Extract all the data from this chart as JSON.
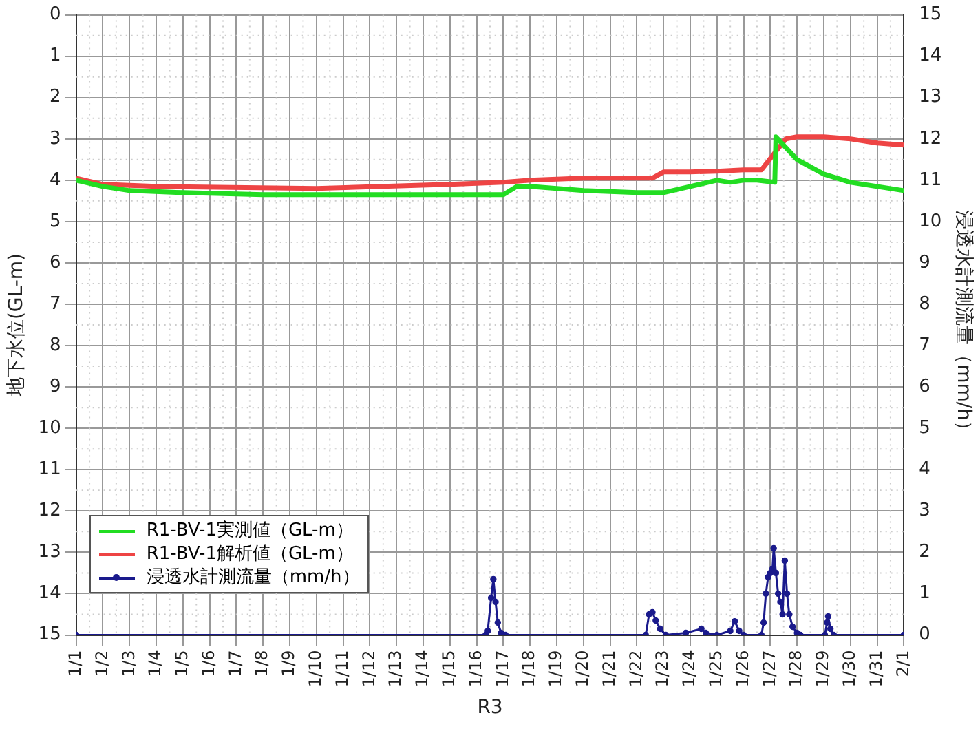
{
  "chart_data": {
    "type": "line",
    "xlabel": "R3",
    "ylabel": "地下水位(GL-m)",
    "y2label": "浸透水計測流量（mm/h）",
    "xlim": [
      "--01-01",
      "--02-01"
    ],
    "xticks": [
      {
        "value": "--01-01",
        "label": "1/1"
      },
      {
        "value": "--01-02",
        "label": "1/2"
      },
      {
        "value": "--01-03",
        "label": "1/3"
      },
      {
        "value": "--01-04",
        "label": "1/4"
      },
      {
        "value": "--01-05",
        "label": "1/5"
      },
      {
        "value": "--01-06",
        "label": "1/6"
      },
      {
        "value": "--01-07",
        "label": "1/7"
      },
      {
        "value": "--01-08",
        "label": "1/8"
      },
      {
        "value": "--01-09",
        "label": "1/9"
      },
      {
        "value": "--01-10",
        "label": "1/10"
      },
      {
        "value": "--01-11",
        "label": "1/11"
      },
      {
        "value": "--01-12",
        "label": "1/12"
      },
      {
        "value": "--01-13",
        "label": "1/13"
      },
      {
        "value": "--01-14",
        "label": "1/14"
      },
      {
        "value": "--01-15",
        "label": "1/15"
      },
      {
        "value": "--01-16",
        "label": "1/16"
      },
      {
        "value": "--01-17",
        "label": "1/17"
      },
      {
        "value": "--01-18",
        "label": "1/18"
      },
      {
        "value": "--01-19",
        "label": "1/19"
      },
      {
        "value": "--01-20",
        "label": "1/20"
      },
      {
        "value": "--01-21",
        "label": "1/21"
      },
      {
        "value": "--01-22",
        "label": "1/22"
      },
      {
        "value": "--01-23",
        "label": "1/23"
      },
      {
        "value": "--01-24",
        "label": "1/24"
      },
      {
        "value": "--01-25",
        "label": "1/25"
      },
      {
        "value": "--01-26",
        "label": "1/26"
      },
      {
        "value": "--01-27",
        "label": "1/27"
      },
      {
        "value": "--01-28",
        "label": "1/28"
      },
      {
        "value": "--01-29",
        "label": "1/29"
      },
      {
        "value": "--01-30",
        "label": "1/30"
      },
      {
        "value": "--01-31",
        "label": "1/31"
      },
      {
        "value": "--02-01",
        "label": "2/1"
      }
    ],
    "ylim": [
      15,
      0
    ],
    "yticks": [
      0,
      1,
      2,
      3,
      4,
      5,
      6,
      7,
      8,
      9,
      10,
      11,
      12,
      13,
      14,
      15
    ],
    "y2lim": [
      0,
      15
    ],
    "y2ticks": [
      0,
      1,
      2,
      3,
      4,
      5,
      6,
      7,
      8,
      9,
      10,
      11,
      12,
      13,
      14,
      15
    ],
    "grid": true,
    "legend": "bottom left",
    "line_style": "solid",
    "series": [
      {
        "name": "R1-BV-1実測値（GL-m）",
        "color": "#22dd22",
        "marker": "none",
        "x": [
          "--01-01",
          "--01-02",
          "--01-03",
          "--01-05",
          "--01-08",
          "--01-10",
          "--01-17",
          "--01-17T12:00",
          "--01-18",
          "--01-20",
          "--01-22",
          "--01-23",
          "--01-24",
          "--01-25",
          "--01-25T12:00",
          "--01-26",
          "--01-26T12:00",
          "--01-27T04:00",
          "--01-27T05:00",
          "--01-28",
          "--01-29",
          "--01-30",
          "--01-31",
          "--02-01"
        ],
        "values": [
          4.0,
          4.15,
          4.25,
          4.3,
          4.35,
          4.35,
          4.35,
          4.15,
          4.15,
          4.25,
          4.3,
          4.3,
          4.15,
          4.0,
          4.05,
          4.0,
          4.0,
          4.05,
          2.95,
          3.5,
          3.85,
          4.05,
          4.15,
          4.25
        ]
      },
      {
        "name": "R1-BV-1解析値（GL-m）",
        "color": "#ee4444",
        "marker": "none",
        "x": [
          "--01-01",
          "--01-02",
          "--01-04",
          "--01-10",
          "--01-15",
          "--01-17",
          "--01-18",
          "--01-20",
          "--01-22",
          "--01-22T14:00",
          "--01-23",
          "--01-24",
          "--01-25",
          "--01-26",
          "--01-26T16:00",
          "--01-27T05:00",
          "--01-27T14:00",
          "--01-28",
          "--01-29",
          "--01-30",
          "--01-31",
          "--02-01"
        ],
        "values": [
          3.95,
          4.1,
          4.15,
          4.2,
          4.1,
          4.05,
          4.0,
          3.95,
          3.95,
          3.95,
          3.8,
          3.8,
          3.78,
          3.75,
          3.75,
          3.3,
          3.0,
          2.95,
          2.95,
          3.0,
          3.1,
          3.15
        ]
      },
      {
        "name": "浸透水計測流量（mm/h）",
        "color": "#1a1a8c",
        "axis": "y2",
        "marker": "circle",
        "x": [
          "--01-01",
          "--01-16T08:00",
          "--01-16T10:00",
          "--01-16T13:00",
          "--01-16T15:00",
          "--01-16T17:00",
          "--01-16T19:00",
          "--01-16T22:00",
          "--01-17T02:00",
          "--01-22T08:00",
          "--01-22T11:00",
          "--01-22T14:00",
          "--01-22T17:00",
          "--01-22T21:00",
          "--01-23T02:00",
          "--01-23T20:00",
          "--01-24T10:00",
          "--01-24T14:00",
          "--01-25T00:00",
          "--01-25T12:00",
          "--01-25T16:00",
          "--01-25T20:00",
          "--01-26T00:00",
          "--01-26T16:00",
          "--01-26T18:00",
          "--01-26T20:00",
          "--01-26T22:00",
          "--01-27T00:00",
          "--01-27T02:00",
          "--01-27T03:00",
          "--01-27T05:00",
          "--01-27T07:00",
          "--01-27T09:00",
          "--01-27T11:00",
          "--01-27T13:00",
          "--01-27T15:00",
          "--01-27T17:00",
          "--01-27T20:00",
          "--01-28T00:00",
          "--01-28T03:00",
          "--01-29T01:00",
          "--01-29T03:00",
          "--01-29T04:00",
          "--01-29T06:00",
          "--01-29T09:00",
          "--02-01"
        ],
        "values": [
          0,
          0,
          0.1,
          0.9,
          1.35,
          0.8,
          0.3,
          0.05,
          0,
          0,
          0.5,
          0.55,
          0.35,
          0.15,
          0,
          0.05,
          0.15,
          0.05,
          0,
          0.1,
          0.33,
          0.1,
          0,
          0,
          0.3,
          1.0,
          1.4,
          1.5,
          1.6,
          2.1,
          1.5,
          1.0,
          0.8,
          0.5,
          1.8,
          1.0,
          0.5,
          0.2,
          0.05,
          0,
          0,
          0.3,
          0.45,
          0.15,
          0,
          0
        ]
      }
    ]
  }
}
